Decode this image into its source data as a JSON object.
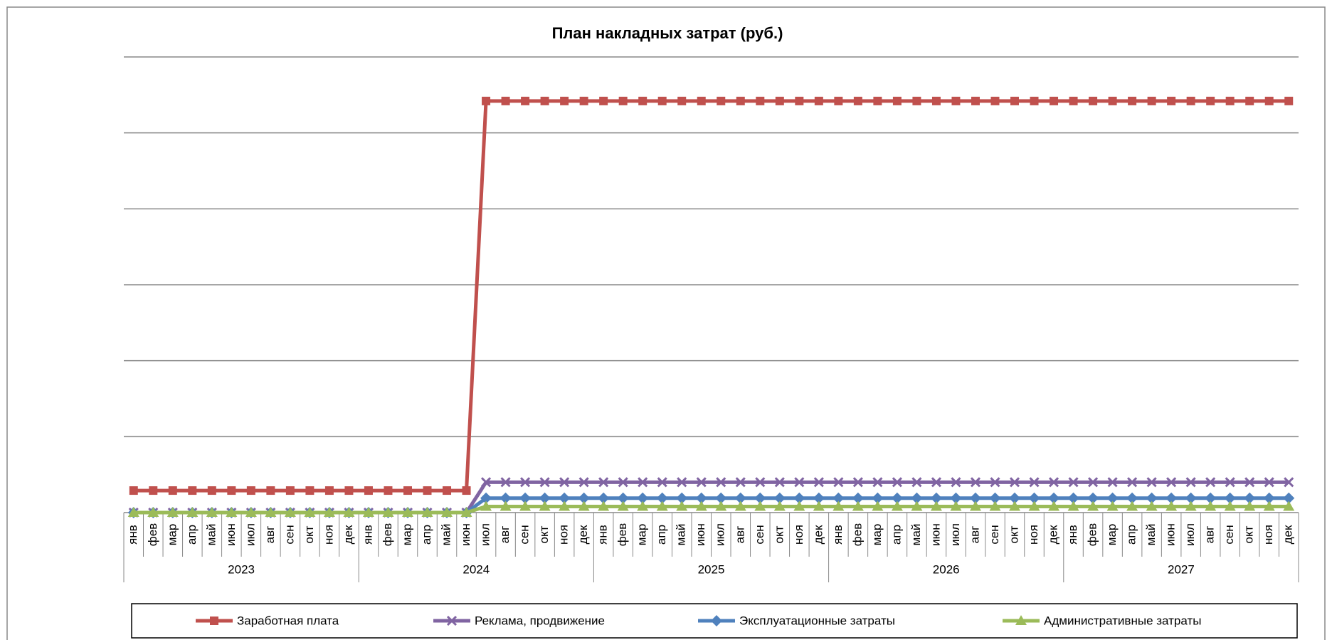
{
  "chart_data": {
    "type": "line",
    "title": "План накладных затрат (руб.)",
    "categories": [
      "янв",
      "фев",
      "мар",
      "апр",
      "май",
      "июн",
      "июл",
      "авг",
      "сен",
      "окт",
      "ноя",
      "дек",
      "янв",
      "фев",
      "мар",
      "апр",
      "май",
      "июн",
      "июл",
      "авг",
      "сен",
      "окт",
      "ноя",
      "дек",
      "янв",
      "фев",
      "мар",
      "апр",
      "май",
      "июн",
      "июл",
      "авг",
      "сен",
      "окт",
      "ноя",
      "дек",
      "янв",
      "фев",
      "мар",
      "апр",
      "май",
      "июн",
      "июл",
      "авг",
      "сен",
      "окт",
      "ноя",
      "дек",
      "янв",
      "фев",
      "мар",
      "апр",
      "май",
      "июн",
      "июл",
      "авг",
      "сен",
      "окт",
      "ноя",
      "дек"
    ],
    "category_groups": [
      "2023",
      "2024",
      "2025",
      "2026",
      "2027"
    ],
    "series": [
      {
        "name": "Заработная плата",
        "color": "#c0504d",
        "marker": "square",
        "values": [
          0.29,
          0.29,
          0.29,
          0.29,
          0.29,
          0.29,
          0.29,
          0.29,
          0.29,
          0.29,
          0.29,
          0.29,
          0.29,
          0.29,
          0.29,
          0.29,
          0.29,
          0.29,
          5.42,
          5.42,
          5.42,
          5.42,
          5.42,
          5.42,
          5.42,
          5.42,
          5.42,
          5.42,
          5.42,
          5.42,
          5.42,
          5.42,
          5.42,
          5.42,
          5.42,
          5.42,
          5.42,
          5.42,
          5.42,
          5.42,
          5.42,
          5.42,
          5.42,
          5.42,
          5.42,
          5.42,
          5.42,
          5.42,
          5.42,
          5.42,
          5.42,
          5.42,
          5.42,
          5.42,
          5.42,
          5.42,
          5.42,
          5.42,
          5.42,
          5.42
        ]
      },
      {
        "name": "Реклама, продвижение",
        "color": "#8064a2",
        "marker": "x",
        "values": [
          0,
          0,
          0,
          0,
          0,
          0,
          0,
          0,
          0,
          0,
          0,
          0,
          0,
          0,
          0,
          0,
          0,
          0,
          0.4,
          0.4,
          0.4,
          0.4,
          0.4,
          0.4,
          0.4,
          0.4,
          0.4,
          0.4,
          0.4,
          0.4,
          0.4,
          0.4,
          0.4,
          0.4,
          0.4,
          0.4,
          0.4,
          0.4,
          0.4,
          0.4,
          0.4,
          0.4,
          0.4,
          0.4,
          0.4,
          0.4,
          0.4,
          0.4,
          0.4,
          0.4,
          0.4,
          0.4,
          0.4,
          0.4,
          0.4,
          0.4,
          0.4,
          0.4,
          0.4,
          0.4
        ]
      },
      {
        "name": "Эксплуатационные затраты",
        "color": "#4f81bd",
        "marker": "diamond",
        "values": [
          0,
          0,
          0,
          0,
          0,
          0,
          0,
          0,
          0,
          0,
          0,
          0,
          0,
          0,
          0,
          0,
          0,
          0,
          0.19,
          0.19,
          0.19,
          0.19,
          0.19,
          0.19,
          0.19,
          0.19,
          0.19,
          0.19,
          0.19,
          0.19,
          0.19,
          0.19,
          0.19,
          0.19,
          0.19,
          0.19,
          0.19,
          0.19,
          0.19,
          0.19,
          0.19,
          0.19,
          0.19,
          0.19,
          0.19,
          0.19,
          0.19,
          0.19,
          0.19,
          0.19,
          0.19,
          0.19,
          0.19,
          0.19,
          0.19,
          0.19,
          0.19,
          0.19,
          0.19,
          0.19
        ]
      },
      {
        "name": "Административные затраты",
        "color": "#9bbb59",
        "marker": "triangle",
        "values": [
          0,
          0,
          0,
          0,
          0,
          0,
          0,
          0,
          0,
          0,
          0,
          0,
          0,
          0,
          0,
          0,
          0,
          0,
          0.08,
          0.08,
          0.08,
          0.08,
          0.08,
          0.08,
          0.08,
          0.08,
          0.08,
          0.08,
          0.08,
          0.08,
          0.08,
          0.08,
          0.08,
          0.08,
          0.08,
          0.08,
          0.08,
          0.08,
          0.08,
          0.08,
          0.08,
          0.08,
          0.08,
          0.08,
          0.08,
          0.08,
          0.08,
          0.08,
          0.08,
          0.08,
          0.08,
          0.08,
          0.08,
          0.08,
          0.08,
          0.08,
          0.08,
          0.08,
          0.08,
          0.08
        ]
      }
    ],
    "ylim": [
      0,
      6
    ],
    "yticks": [
      0,
      1,
      2,
      3,
      4,
      5,
      6
    ],
    "grid": true,
    "legend": "bottom"
  }
}
